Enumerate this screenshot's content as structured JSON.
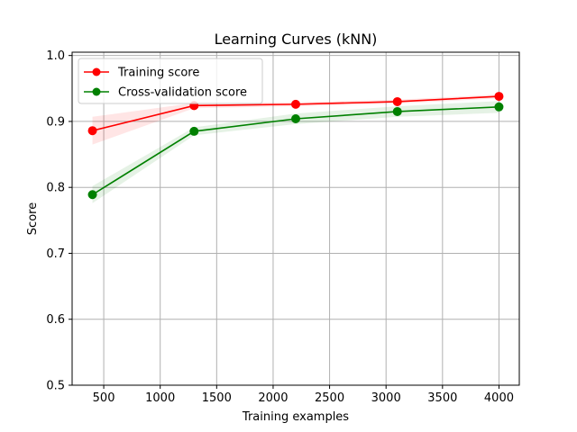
{
  "chart_data": {
    "type": "line",
    "title": "Learning Curves (kNN)",
    "xlabel": "Training examples",
    "ylabel": "Score",
    "xlim": [
      220,
      4180
    ],
    "ylim": [
      0.5,
      1.005
    ],
    "xticks": [
      500,
      1000,
      1500,
      2000,
      2500,
      3000,
      3500,
      4000
    ],
    "yticks": [
      0.5,
      0.6,
      0.7,
      0.8,
      0.9,
      1.0
    ],
    "xtick_labels": [
      "500",
      "1000",
      "1500",
      "2000",
      "2500",
      "3000",
      "3500",
      "4000"
    ],
    "ytick_labels": [
      "0.5",
      "0.6",
      "0.7",
      "0.8",
      "0.9",
      "1.0"
    ],
    "grid": true,
    "legend_position": "top-left",
    "x": [
      400,
      1300,
      2200,
      3100,
      4000
    ],
    "series": [
      {
        "name": "Training score",
        "color": "#ff0000",
        "values": [
          0.886,
          0.924,
          0.926,
          0.93,
          0.938
        ],
        "band_low": [
          0.865,
          0.92,
          0.923,
          0.927,
          0.935
        ],
        "band_high": [
          0.907,
          0.928,
          0.929,
          0.933,
          0.941
        ]
      },
      {
        "name": "Cross-validation score",
        "color": "#008000",
        "values": [
          0.789,
          0.885,
          0.904,
          0.915,
          0.922
        ],
        "band_low": [
          0.776,
          0.879,
          0.896,
          0.907,
          0.913
        ],
        "band_high": [
          0.802,
          0.891,
          0.912,
          0.923,
          0.931
        ]
      }
    ]
  }
}
